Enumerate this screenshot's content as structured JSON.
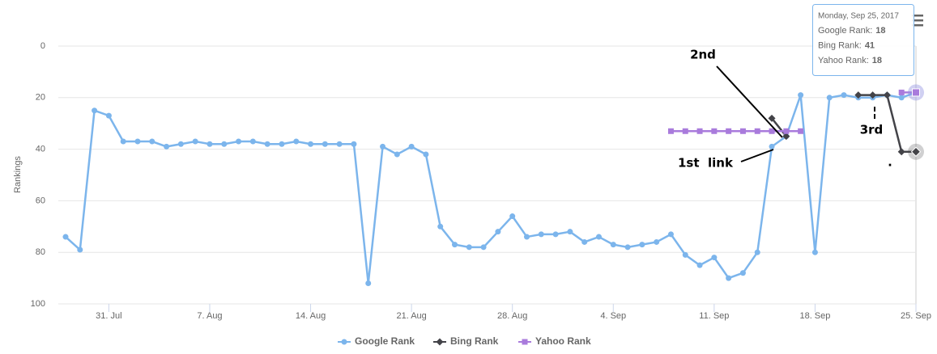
{
  "chart_data": {
    "type": "line",
    "y_title": "Rankings",
    "categories": [
      null,
      null,
      null,
      "31. Jul",
      null,
      null,
      null,
      null,
      null,
      null,
      "7. Aug",
      null,
      null,
      null,
      null,
      null,
      null,
      "14. Aug",
      null,
      null,
      null,
      null,
      null,
      null,
      "21. Aug",
      null,
      null,
      null,
      null,
      null,
      null,
      "28. Aug",
      null,
      null,
      null,
      null,
      null,
      null,
      "4. Sep",
      null,
      null,
      null,
      null,
      null,
      null,
      "11. Sep",
      null,
      null,
      null,
      null,
      null,
      null,
      "18. Sep",
      null,
      null,
      null,
      null,
      null,
      null,
      "25. Sep"
    ],
    "series": [
      {
        "name": "Google Rank",
        "color": "#7cb5ec",
        "marker": "circle",
        "values": [
          74,
          79,
          25,
          27,
          37,
          37,
          37,
          39,
          38,
          37,
          38,
          38,
          37,
          37,
          38,
          38,
          37,
          38,
          38,
          38,
          38,
          92,
          39,
          42,
          39,
          42,
          70,
          77,
          78,
          78,
          72,
          66,
          74,
          73,
          73,
          72,
          76,
          74,
          77,
          78,
          77,
          76,
          73,
          81,
          85,
          82,
          90,
          88,
          80,
          39,
          35,
          19,
          80,
          20,
          19,
          20,
          20,
          19,
          20,
          18
        ]
      },
      {
        "name": "Bing Rank",
        "color": "#434348",
        "marker": "diamond",
        "values": [
          null,
          null,
          null,
          null,
          null,
          null,
          null,
          null,
          null,
          null,
          null,
          null,
          null,
          null,
          null,
          null,
          null,
          null,
          null,
          null,
          null,
          null,
          null,
          null,
          null,
          null,
          null,
          null,
          null,
          null,
          null,
          null,
          null,
          null,
          null,
          null,
          null,
          null,
          null,
          null,
          null,
          null,
          null,
          null,
          null,
          null,
          null,
          null,
          null,
          28,
          35,
          null,
          null,
          null,
          null,
          19,
          19,
          19,
          41,
          41
        ]
      },
      {
        "name": "Yahoo Rank",
        "color": "#a97bdc",
        "marker": "square",
        "values": [
          null,
          null,
          null,
          null,
          null,
          null,
          null,
          null,
          null,
          null,
          null,
          null,
          null,
          null,
          null,
          null,
          null,
          null,
          null,
          null,
          null,
          null,
          null,
          null,
          null,
          null,
          null,
          null,
          null,
          null,
          null,
          null,
          null,
          null,
          null,
          null,
          null,
          null,
          null,
          null,
          null,
          null,
          33,
          33,
          33,
          33,
          33,
          33,
          33,
          33,
          33,
          33,
          null,
          null,
          null,
          null,
          null,
          null,
          18,
          18
        ]
      }
    ],
    "ylim": [
      0,
      100
    ],
    "yticks": [
      0,
      20,
      40,
      60,
      80,
      100
    ],
    "reversed": true,
    "grid": true,
    "legend": "bottom",
    "tooltip": {
      "date": "Monday, Sep 25, 2017",
      "labels": [
        "Google Rank:",
        "Bing Rank:",
        "Yahoo Rank:"
      ]
    },
    "annotations": [
      "2nd",
      "1st  link",
      "3rd",
      "."
    ]
  }
}
